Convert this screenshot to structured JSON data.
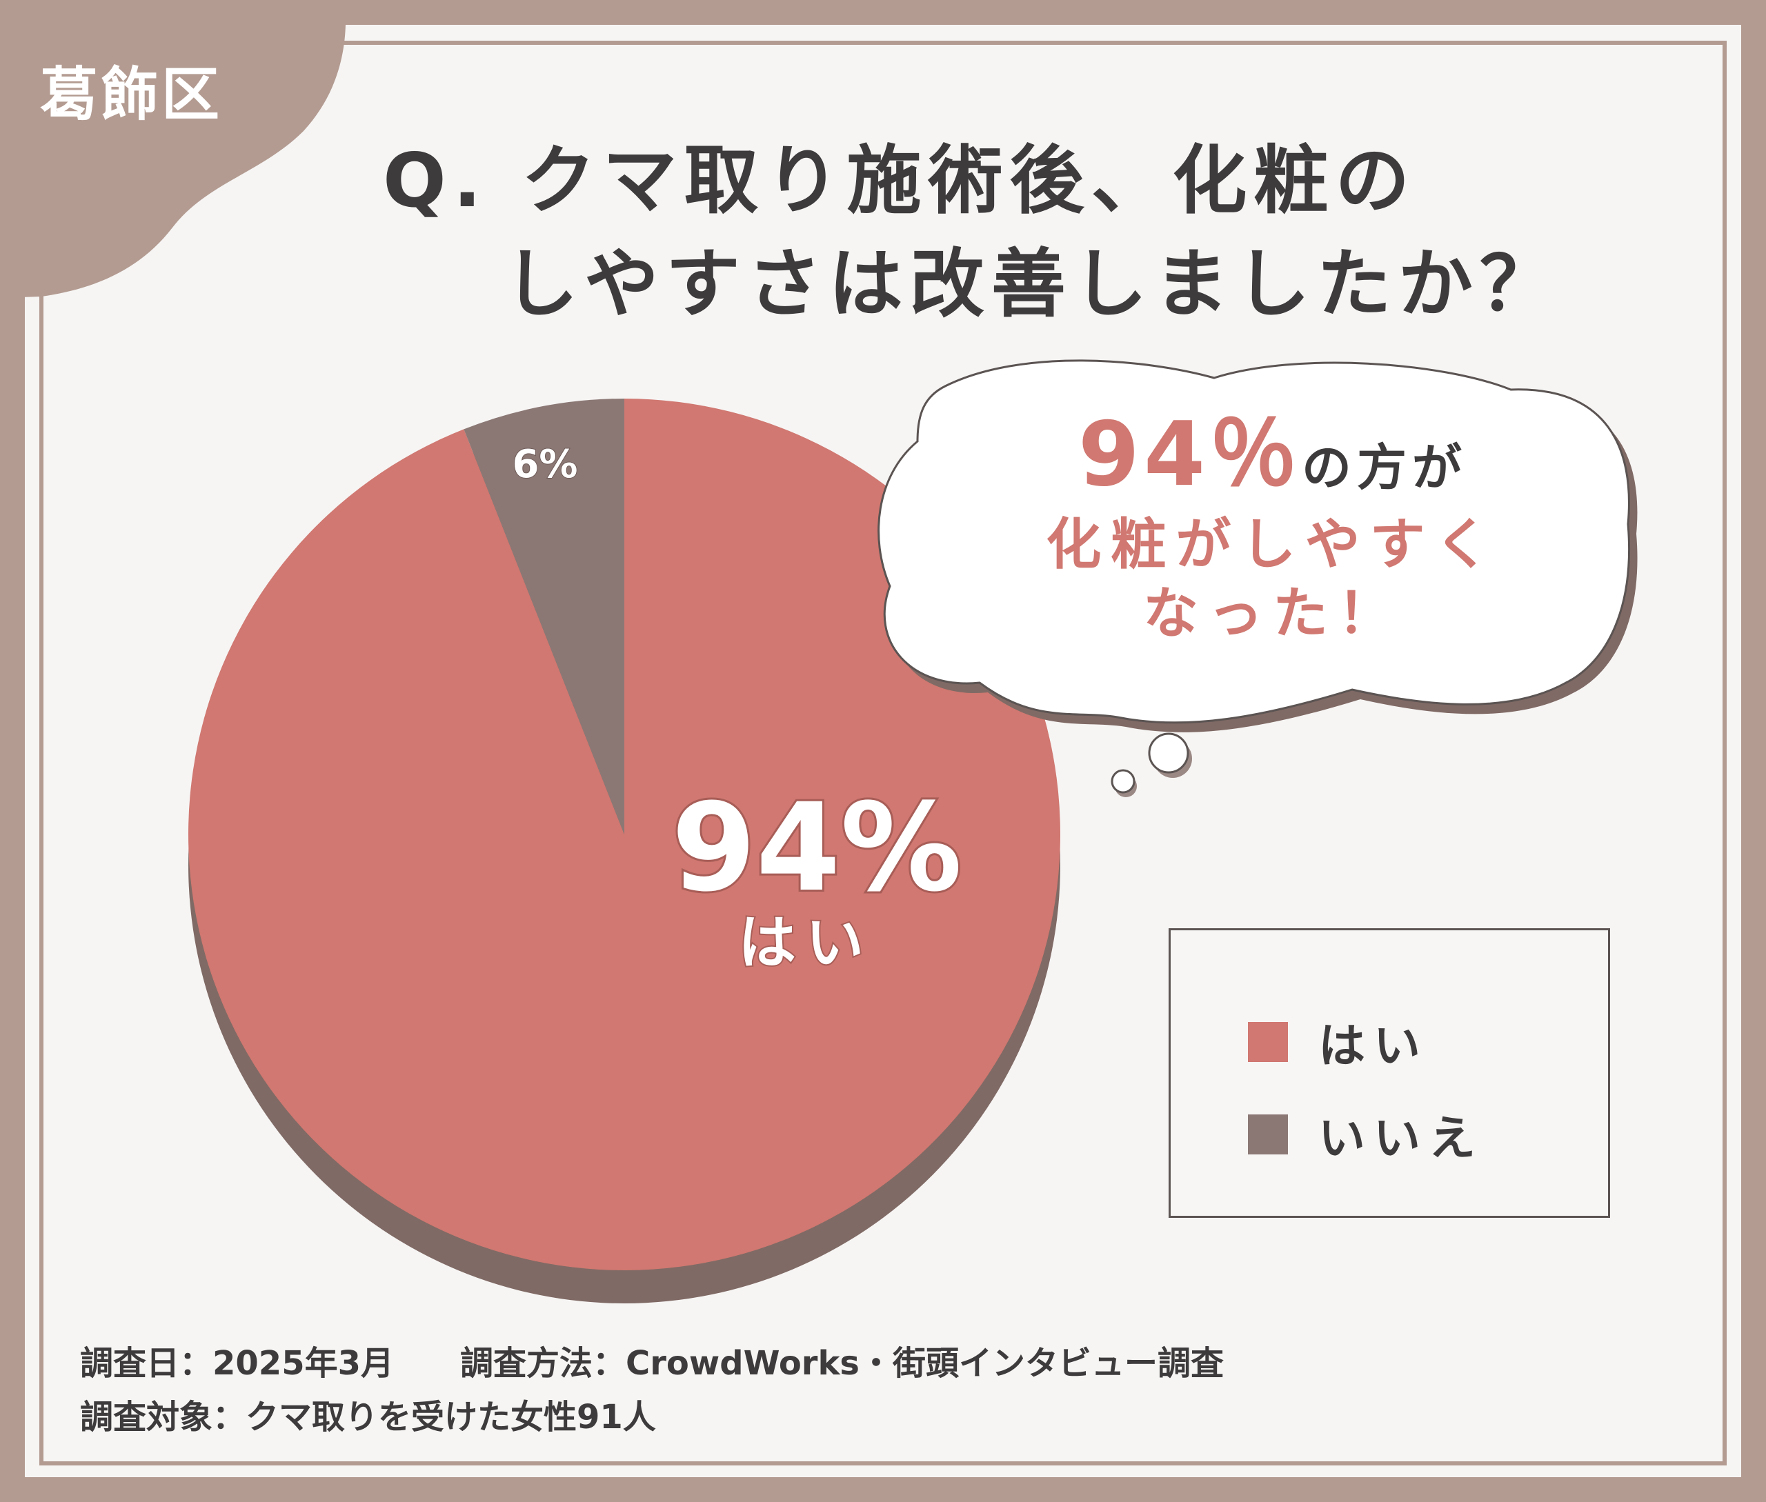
{
  "region_label": "葛飾区",
  "title": {
    "line1": "Q. クマ取り施術後、化粧の",
    "line2": "しやすさは改善しましたか？"
  },
  "bubble": {
    "percent": "94％",
    "suffix": "の方が",
    "line2": "化粧がしやすく",
    "line3": "なった！"
  },
  "slice_labels": {
    "main_value": "94%",
    "main_label": "はい",
    "minor_value": "6%"
  },
  "legend": {
    "items": [
      {
        "label": "はい",
        "color": "#d07871"
      },
      {
        "label": "いいえ",
        "color": "#8b7875"
      }
    ]
  },
  "footer": {
    "date_label": "調査日：2025年3月",
    "method_label": "調査方法：CrowdWorks・街頭インタビュー調査",
    "target_label": "調査対象：クマ取りを受けた女性91人"
  },
  "colors": {
    "frame": "#b39b91",
    "background": "#f6f5f4",
    "yes": "#d07871",
    "no": "#8b7875",
    "pie_shadow": "#806a65",
    "title_text": "#3d3b3b"
  },
  "chart_data": {
    "type": "pie",
    "categories": [
      "はい",
      "いいえ"
    ],
    "values": [
      94,
      6
    ],
    "value_labels": [
      "94%",
      "6%"
    ],
    "title": "Q. クマ取り施術後、化粧のしやすさは改善しましたか？",
    "legend_position": "right"
  }
}
